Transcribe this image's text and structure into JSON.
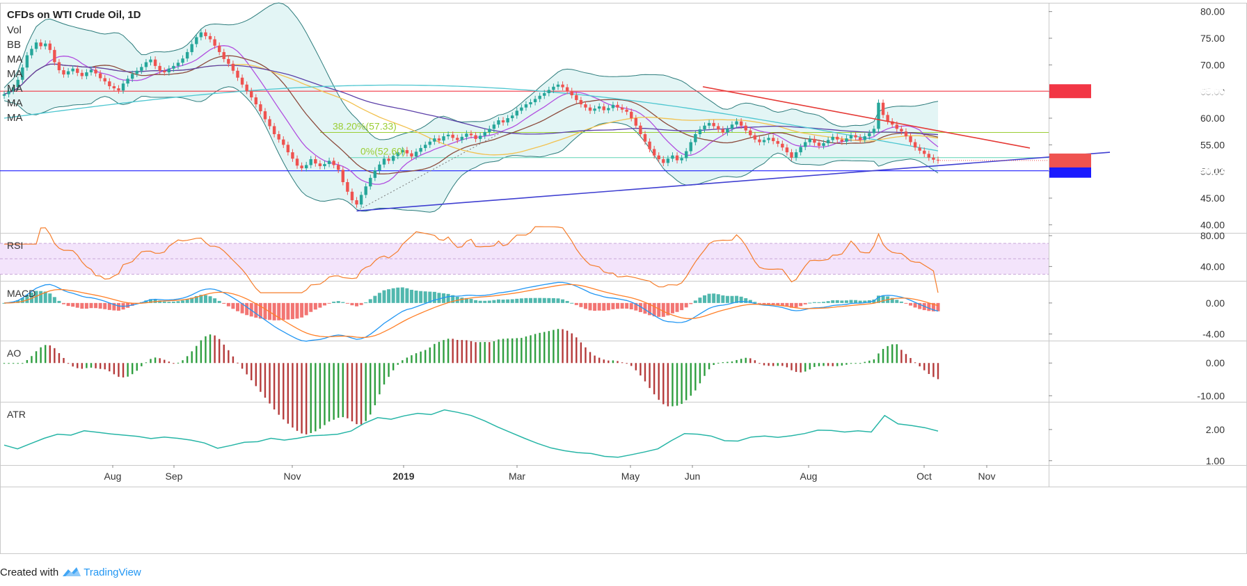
{
  "chart_data": {
    "type": "candlestick",
    "title": "CFDs on WTI Crude Oil, 1D",
    "main_pane": {
      "indicator_labels": [
        "Vol",
        "BB",
        "MA",
        "MA",
        "MA",
        "MA",
        "MA"
      ],
      "y_ticks": [
        "80.00",
        "75.00",
        "70.00",
        "65.00",
        "60.00",
        "55.00",
        "50.00",
        "45.00",
        "40.00"
      ],
      "ylim": [
        39,
        81
      ],
      "fib_labels": [
        "38.20%(57.33)",
        "0%(52.60)"
      ],
      "fib_levels": [
        57.33,
        52.6
      ],
      "horizontal_levels": [
        {
          "value": 65.06,
          "label": "65.06",
          "color": "#f23645"
        },
        {
          "value": 50.13,
          "label": "50.13",
          "color": "#1a1aff"
        }
      ],
      "last_price": {
        "value": 52.06,
        "label": "52.06",
        "color": "#ef5350"
      },
      "close_series": [
        64.5,
        65.1,
        65.8,
        67.2,
        69.5,
        71.8,
        73.0,
        74.2,
        73.5,
        74.0,
        72.8,
        70.5,
        69.0,
        68.2,
        68.8,
        69.3,
        68.5,
        67.9,
        68.6,
        69.1,
        68.4,
        67.5,
        66.9,
        66.0,
        65.6,
        65.2,
        66.5,
        67.4,
        68.3,
        68.9,
        69.6,
        70.5,
        71.0,
        69.8,
        68.9,
        68.6,
        69.3,
        69.8,
        70.4,
        71.2,
        72.4,
        73.9,
        75.2,
        76.1,
        75.4,
        74.8,
        73.6,
        72.4,
        71.1,
        70.2,
        68.9,
        67.6,
        66.3,
        65.1,
        63.9,
        62.6,
        61.3,
        59.8,
        58.5,
        57.0,
        56.0,
        55.0,
        53.6,
        52.4,
        51.1,
        50.6,
        51.2,
        52.3,
        51.5,
        51.0,
        51.4,
        52.0,
        51.2,
        50.3,
        48.0,
        46.2,
        44.6,
        43.8,
        45.6,
        47.2,
        48.8,
        50.2,
        51.3,
        52.4,
        52.0,
        52.9,
        53.6,
        54.0,
        53.4,
        52.8,
        53.7,
        54.4,
        55.0,
        55.6,
        56.2,
        55.8,
        56.6,
        56.9,
        56.3,
        55.9,
        56.5,
        57.1,
        56.8,
        56.1,
        56.7,
        57.4,
        58.0,
        58.8,
        59.6,
        59.2,
        60.0,
        60.5,
        61.4,
        62.0,
        62.6,
        63.0,
        63.6,
        64.2,
        64.7,
        65.3,
        65.9,
        66.3,
        65.8,
        65.1,
        64.3,
        63.4,
        62.6,
        62.0,
        61.4,
        61.8,
        62.2,
        61.5,
        61.9,
        62.5,
        62.0,
        61.6,
        61.2,
        60.0,
        58.6,
        57.0,
        55.6,
        54.2,
        53.0,
        52.3,
        51.6,
        52.4,
        53.0,
        52.1,
        52.5,
        53.8,
        55.5,
        57.0,
        57.9,
        58.6,
        59.1,
        58.5,
        57.9,
        57.3,
        58.0,
        58.8,
        59.4,
        58.6,
        57.7,
        56.8,
        56.0,
        55.5,
        55.9,
        56.3,
        55.7,
        55.2,
        54.5,
        53.6,
        52.6,
        53.6,
        54.6,
        55.5,
        56.1,
        55.4,
        54.8,
        55.3,
        55.9,
        56.5,
        56.0,
        55.6,
        56.2,
        56.8,
        56.4,
        55.9,
        56.6,
        57.2,
        58.0,
        62.9,
        60.6,
        59.4,
        58.8,
        58.0,
        57.5,
        56.6,
        55.5,
        54.5,
        53.9,
        53.3,
        52.6,
        52.2,
        52.06
      ],
      "bollinger": {
        "upper_color": "#2a7a7a",
        "fill_color": "#d9f2f2"
      },
      "moving_averages": [
        {
          "period": 10,
          "color": "#b14fe0"
        },
        {
          "period": 20,
          "color": "#8b4a3c"
        },
        {
          "period": 50,
          "color": "#f2c14e"
        },
        {
          "period": 100,
          "color": "#5b3fa8"
        },
        {
          "period": 200,
          "color": "#4dc6d0"
        }
      ],
      "trendlines": [
        {
          "color": "#e53935",
          "from": {
            "date": "Apr 23",
            "value": 65.9
          },
          "to": {
            "date": "Oct 10",
            "value": 54.4
          }
        },
        {
          "color": "#3f3fd1",
          "from": {
            "date": "Dec 27",
            "value": 42.6
          },
          "to": {
            "date": "Oct 15",
            "value": 53.6
          }
        }
      ]
    },
    "x_ticks": [
      "Aug",
      "Sep",
      "Nov",
      "2019",
      "Mar",
      "May",
      "Jun",
      "Aug",
      "Oct",
      "Nov"
    ],
    "rsi_pane": {
      "label": "RSI",
      "y_ticks": [
        "80.00",
        "40.00"
      ],
      "ylim": [
        25,
        80
      ],
      "band": [
        30,
        70
      ],
      "color": "#f57c2a",
      "band_color": "#f3e4fb"
    },
    "macd_pane": {
      "label": "MACD",
      "y_ticks": [
        "0.00",
        "-4.00"
      ],
      "ylim": [
        -4.5,
        2.5
      ],
      "macd_color": "#2196f3",
      "signal_color": "#ff7f27",
      "hist_pos_color": "#26a69a",
      "hist_neg_color": "#ef5350"
    },
    "ao_pane": {
      "label": "AO",
      "y_ticks": [
        "0.00",
        "-10.00"
      ],
      "ylim": [
        -11,
        6
      ],
      "up_color": "#2e9e3f",
      "down_color": "#b53a3a"
    },
    "atr_pane": {
      "label": "ATR",
      "y_ticks": [
        "2.00",
        "1.00"
      ],
      "ylim": [
        0.95,
        2.8
      ],
      "color": "#26b5a6",
      "values": [
        1.5,
        1.38,
        1.55,
        1.72,
        1.85,
        1.82,
        1.96,
        1.91,
        1.86,
        1.82,
        1.78,
        1.71,
        1.76,
        1.72,
        1.66,
        1.57,
        1.4,
        1.49,
        1.59,
        1.61,
        1.72,
        1.66,
        1.72,
        1.8,
        1.82,
        1.85,
        1.95,
        2.2,
        2.38,
        2.33,
        2.44,
        2.52,
        2.48,
        2.63,
        2.55,
        2.45,
        2.28,
        2.08,
        1.9,
        1.72,
        1.55,
        1.41,
        1.32,
        1.26,
        1.23,
        1.14,
        1.11,
        1.19,
        1.28,
        1.38,
        1.64,
        1.87,
        1.85,
        1.79,
        1.64,
        1.63,
        1.76,
        1.79,
        1.75,
        1.8,
        1.87,
        1.98,
        1.97,
        1.92,
        1.96,
        1.92,
        2.45,
        2.18,
        2.13,
        2.06,
        1.95
      ]
    }
  },
  "footer": {
    "created_with": "Created with",
    "brand": "TradingView"
  }
}
